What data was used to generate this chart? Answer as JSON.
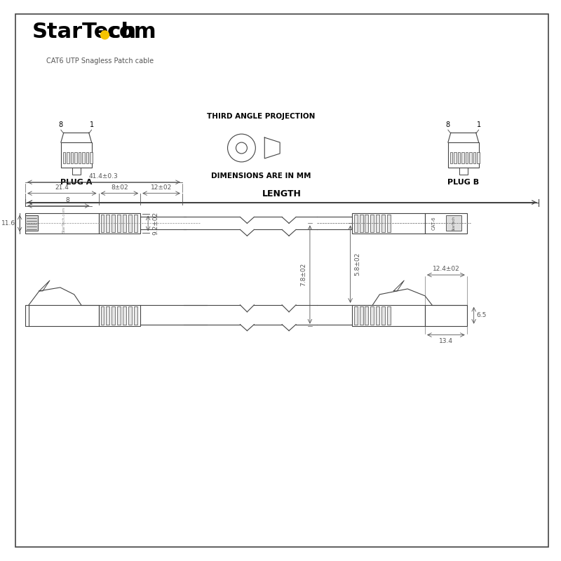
{
  "bg_color": "#ffffff",
  "line_color": "#444444",
  "dim_color": "#555555",
  "logo_dot_color": "#F5C400",
  "subtitle": "CAT6 UTP Snagless Patch cable",
  "third_angle_text": "THIRD ANGLE PROJECTION",
  "dimensions_text": "DIMENSIONS ARE IN MM",
  "plug_a_label": "PLUG A",
  "plug_b_label": "PLUG B",
  "length_label": "LENGTH",
  "dim_11_6": "11.6",
  "dim_8": "8",
  "dim_21_4": "21.4",
  "dim_8_02": "8±02",
  "dim_12_02": "12±02",
  "dim_41_4": "41.4±0.3",
  "dim_9_2_02": "9.2±02",
  "dim_13_4": "13.4",
  "dim_7_8_02": "7.8±02",
  "dim_6_5": "6.5",
  "dim_5_8_02": "5.8±02",
  "dim_12_4_02": "12.4±02",
  "cat6_label": "CAT-6"
}
